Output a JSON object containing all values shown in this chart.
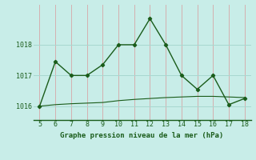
{
  "x": [
    5,
    6,
    7,
    8,
    9,
    10,
    11,
    12,
    13,
    14,
    15,
    16,
    17,
    18
  ],
  "y_line1": [
    1016.0,
    1017.45,
    1017.0,
    1017.0,
    1017.35,
    1018.0,
    1018.0,
    1018.85,
    1018.0,
    1017.0,
    1016.55,
    1017.0,
    1016.05,
    1016.25
  ],
  "y_line2": [
    1016.0,
    1016.05,
    1016.08,
    1016.1,
    1016.12,
    1016.18,
    1016.22,
    1016.25,
    1016.28,
    1016.3,
    1016.32,
    1016.32,
    1016.3,
    1016.28
  ],
  "line_color": "#1a5c1a",
  "bg_color": "#c8ede8",
  "hgrid_color": "#a8d8d0",
  "vgrid_color": "#d4b0b0",
  "title": "Graphe pression niveau de la mer (hPa)",
  "yticks": [
    1016,
    1017,
    1018
  ],
  "xticks": [
    5,
    6,
    7,
    8,
    9,
    10,
    11,
    12,
    13,
    14,
    15,
    16,
    17,
    18
  ],
  "ylim": [
    1015.55,
    1019.3
  ],
  "xlim": [
    4.6,
    18.4
  ],
  "title_fontsize": 6.5,
  "tick_fontsize": 6.0
}
